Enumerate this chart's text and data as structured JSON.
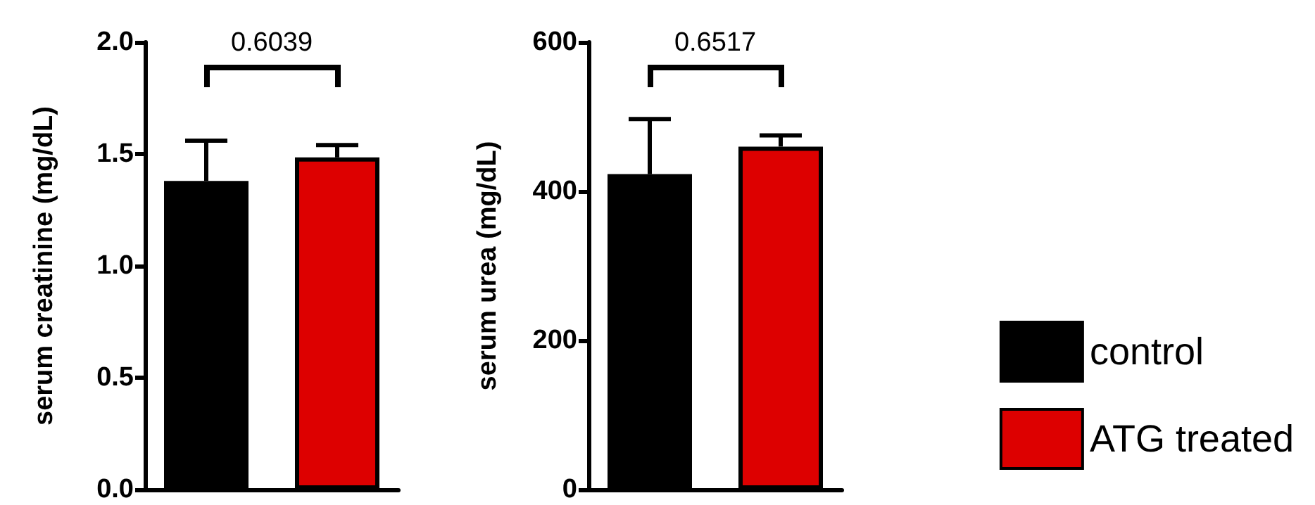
{
  "chart_data": [
    {
      "type": "bar",
      "ylabel": "serum creatinine (mg/dL)",
      "categories": [
        null
      ],
      "ylim": [
        0,
        2
      ],
      "yticks": [
        {
          "value": 0,
          "label": "0.0"
        },
        0.5,
        {
          "value": 1,
          "label": "1.0"
        },
        1.5,
        {
          "value": 2,
          "label": "2.0"
        }
      ],
      "grid": false,
      "legend": false,
      "annotations": [
        "0.6039"
      ],
      "series": [
        {
          "color": "#000000",
          "values": [
            1.38
          ],
          "errors": [
            [
              1.38,
              1.56
            ]
          ]
        },
        {
          "color": "#dd0000",
          "values": [
            1.485
          ],
          "errors": [
            [
              1.485,
              1.54
            ]
          ]
        }
      ]
    },
    {
      "type": "bar",
      "ylabel": "serum urea (mg/dL)",
      "categories": [
        null
      ],
      "ylim": [
        0,
        600
      ],
      "yticks": [
        0,
        200,
        400,
        600
      ],
      "grid": false,
      "legend": "right",
      "annotations": [
        "0.6517"
      ],
      "series": [
        {
          "name": "control",
          "color": "#000000",
          "values": [
            423
          ],
          "errors": [
            [
              423,
              497
            ]
          ]
        },
        {
          "name": "ATG treated",
          "color": "#dd0000",
          "values": [
            460
          ],
          "errors": [
            [
              460,
              475
            ]
          ]
        }
      ]
    }
  ]
}
